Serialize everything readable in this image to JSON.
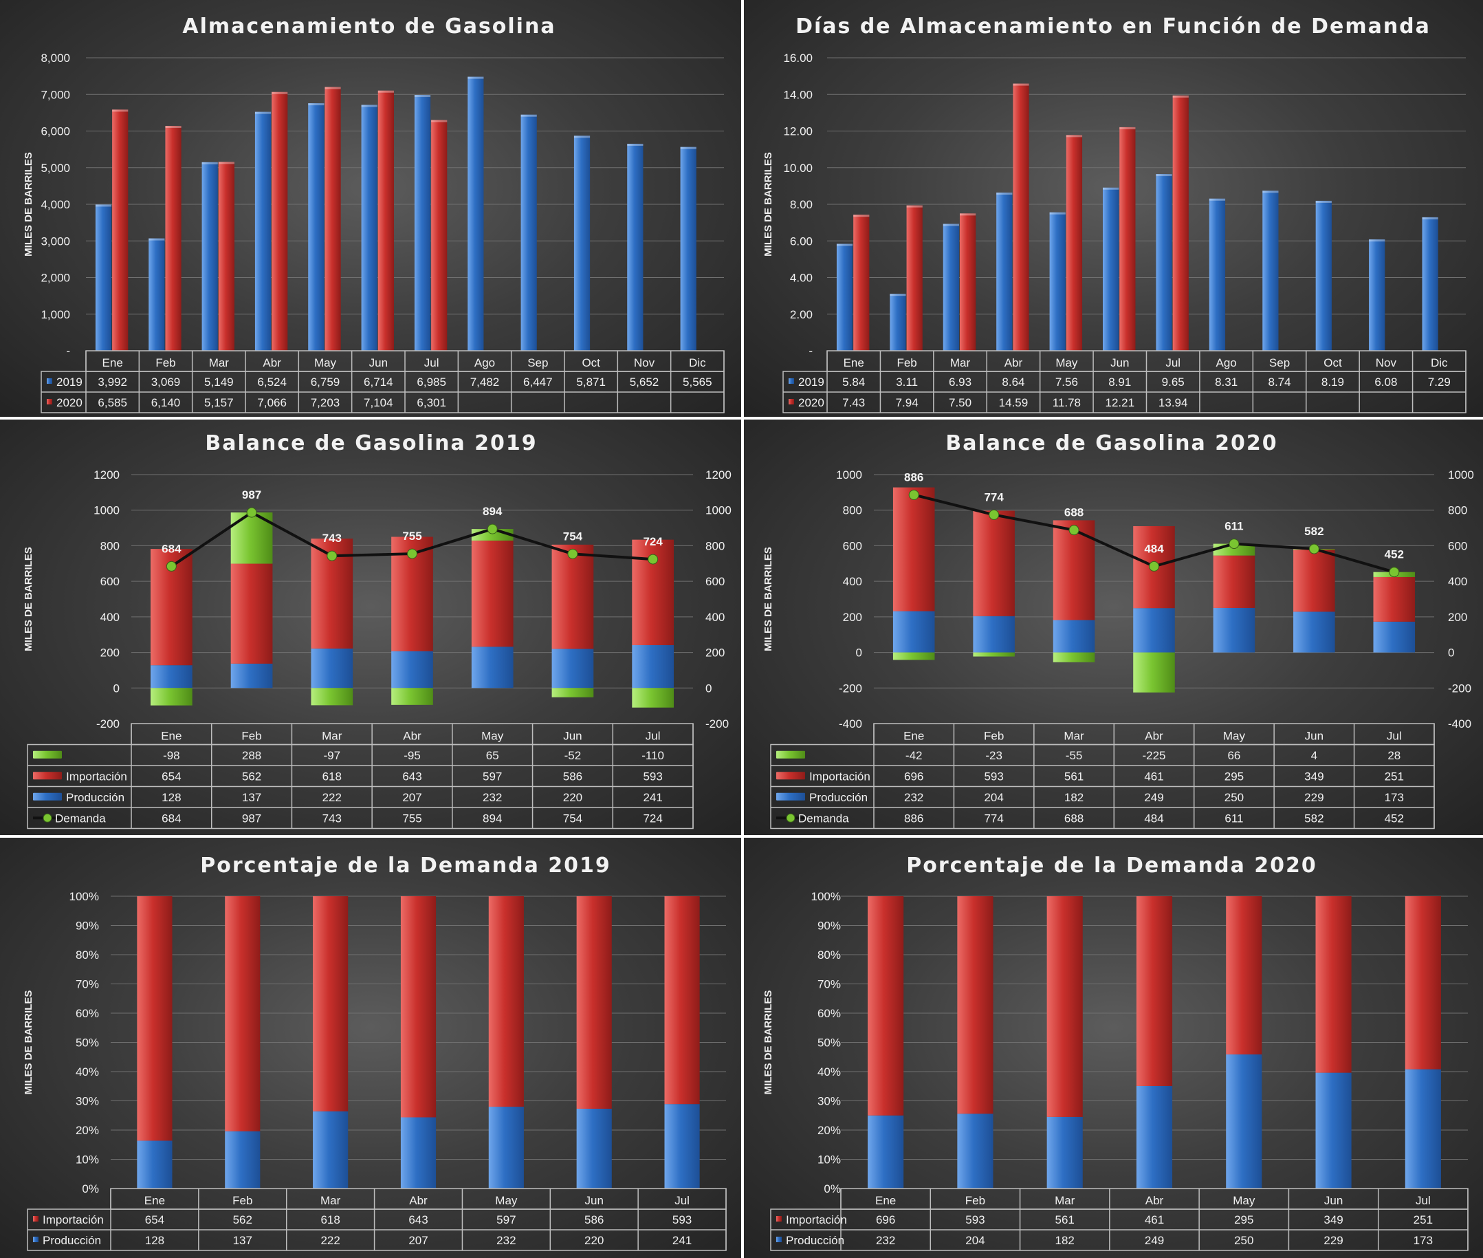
{
  "colors": {
    "blue": "#2e6fc4",
    "red": "#c9302c",
    "green": "#7ac531",
    "line": "#111111",
    "grid": "#707070"
  },
  "chart_data": [
    {
      "id": "c1",
      "type": "bar",
      "title": "Almacenamiento de Gasolina",
      "ylabel": "MILES DE BARRILES",
      "ylim": [
        0,
        8000
      ],
      "yticks": [
        "-",
        "1,000",
        "2,000",
        "3,000",
        "4,000",
        "5,000",
        "6,000",
        "7,000",
        "8,000"
      ],
      "categories": [
        "Ene",
        "Feb",
        "Mar",
        "Abr",
        "May",
        "Jun",
        "Jul",
        "Ago",
        "Sep",
        "Oct",
        "Nov",
        "Dic"
      ],
      "series": [
        {
          "name": "2019",
          "color": "#2e6fc4",
          "values": [
            3992,
            3069,
            5149,
            6524,
            6759,
            6714,
            6985,
            7482,
            6447,
            5871,
            5652,
            5565
          ],
          "labels": [
            "3,992",
            "3,069",
            "5,149",
            "6,524",
            "6,759",
            "6,714",
            "6,985",
            "7,482",
            "6,447",
            "5,871",
            "5,652",
            "5,565"
          ]
        },
        {
          "name": "2020",
          "color": "#c9302c",
          "values": [
            6585,
            6140,
            5157,
            7066,
            7203,
            7104,
            6301,
            null,
            null,
            null,
            null,
            null
          ],
          "labels": [
            "6,585",
            "6,140",
            "5,157",
            "7,066",
            "7,203",
            "7,104",
            "6,301",
            "",
            "",
            "",
            "",
            ""
          ]
        }
      ]
    },
    {
      "id": "c2",
      "type": "bar",
      "title": "Días de Almacenamiento en Función de Demanda",
      "ylabel": "MILES DE BARRILES",
      "ylim": [
        0,
        16
      ],
      "yticks": [
        "-",
        "2.00",
        "4.00",
        "6.00",
        "8.00",
        "10.00",
        "12.00",
        "14.00",
        "16.00"
      ],
      "categories": [
        "Ene",
        "Feb",
        "Mar",
        "Abr",
        "May",
        "Jun",
        "Jul",
        "Ago",
        "Sep",
        "Oct",
        "Nov",
        "Dic"
      ],
      "series": [
        {
          "name": "2019",
          "color": "#2e6fc4",
          "values": [
            5.84,
            3.11,
            6.93,
            8.64,
            7.56,
            8.91,
            9.65,
            8.31,
            8.74,
            8.19,
            6.08,
            7.29
          ],
          "labels": [
            "5.84",
            "3.11",
            "6.93",
            "8.64",
            "7.56",
            "8.91",
            "9.65",
            "8.31",
            "8.74",
            "8.19",
            "6.08",
            "7.29"
          ]
        },
        {
          "name": "2020",
          "color": "#c9302c",
          "values": [
            7.43,
            7.94,
            7.5,
            14.59,
            11.78,
            12.21,
            13.94,
            null,
            null,
            null,
            null,
            null
          ],
          "labels": [
            "7.43",
            "7.94",
            "7.50",
            "14.59",
            "11.78",
            "12.21",
            "13.94",
            "",
            "",
            "",
            "",
            ""
          ]
        }
      ]
    },
    {
      "id": "c3",
      "type": "bar",
      "title": "Balance de Gasolina 2019",
      "ylabel": "MILES DE BARRILES",
      "ylim": [
        -200,
        1200
      ],
      "yticks": [
        "-200",
        "0",
        "200",
        "400",
        "600",
        "800",
        "1000",
        "1200"
      ],
      "categories": [
        "Ene",
        "Feb",
        "Mar",
        "Abr",
        "May",
        "Jun",
        "Jul"
      ],
      "series": [
        {
          "name": "",
          "color": "#7ac531",
          "values": [
            -98,
            288,
            -97,
            -95,
            65,
            -52,
            -110
          ],
          "labels": [
            "-98",
            "288",
            "-97",
            "-95",
            "65",
            "-52",
            "-110"
          ]
        },
        {
          "name": "Importación",
          "color": "#c9302c",
          "values": [
            654,
            562,
            618,
            643,
            597,
            586,
            593
          ],
          "labels": [
            "654",
            "562",
            "618",
            "643",
            "597",
            "586",
            "593"
          ]
        },
        {
          "name": "Producción",
          "color": "#2e6fc4",
          "values": [
            128,
            137,
            222,
            207,
            232,
            220,
            241
          ],
          "labels": [
            "128",
            "137",
            "222",
            "207",
            "232",
            "220",
            "241"
          ]
        },
        {
          "name": "Demanda",
          "color": "#111111",
          "values": [
            684,
            987,
            743,
            755,
            894,
            754,
            724
          ],
          "labels": [
            "684",
            "987",
            "743",
            "755",
            "894",
            "754",
            "724"
          ]
        }
      ]
    },
    {
      "id": "c4",
      "type": "bar",
      "title": "Balance de Gasolina 2020",
      "ylabel": "MILES DE BARRILES",
      "ylim": [
        -400,
        1000
      ],
      "yticks": [
        "-400",
        "-200",
        "0",
        "200",
        "400",
        "600",
        "800",
        "1000"
      ],
      "categories": [
        "Ene",
        "Feb",
        "Mar",
        "Abr",
        "May",
        "Jun",
        "Jul"
      ],
      "series": [
        {
          "name": "",
          "color": "#7ac531",
          "values": [
            -42,
            -23,
            -55,
            -225,
            66,
            4,
            28
          ],
          "labels": [
            "-42",
            "-23",
            "-55",
            "-225",
            "66",
            "4",
            "28"
          ]
        },
        {
          "name": "Importación",
          "color": "#c9302c",
          "values": [
            696,
            593,
            561,
            461,
            295,
            349,
            251
          ],
          "labels": [
            "696",
            "593",
            "561",
            "461",
            "295",
            "349",
            "251"
          ]
        },
        {
          "name": "Producción",
          "color": "#2e6fc4",
          "values": [
            232,
            204,
            182,
            249,
            250,
            229,
            173
          ],
          "labels": [
            "232",
            "204",
            "182",
            "249",
            "250",
            "229",
            "173"
          ]
        },
        {
          "name": "Demanda",
          "color": "#111111",
          "values": [
            886,
            774,
            688,
            484,
            611,
            582,
            452
          ],
          "labels": [
            "886",
            "774",
            "688",
            "484",
            "611",
            "582",
            "452"
          ]
        }
      ]
    },
    {
      "id": "c5",
      "type": "bar",
      "title": "Porcentaje de la Demanda 2019",
      "ylabel": "MILES DE BARRILES",
      "ylim": [
        0,
        100
      ],
      "yticks": [
        "0%",
        "10%",
        "20%",
        "30%",
        "40%",
        "50%",
        "60%",
        "70%",
        "80%",
        "90%",
        "100%"
      ],
      "categories": [
        "Ene",
        "Feb",
        "Mar",
        "Abr",
        "May",
        "Jun",
        "Jul"
      ],
      "series": [
        {
          "name": "Importación",
          "color": "#c9302c",
          "values": [
            654,
            562,
            618,
            643,
            597,
            586,
            593
          ],
          "labels": [
            "654",
            "562",
            "618",
            "643",
            "597",
            "586",
            "593"
          ]
        },
        {
          "name": "Producción",
          "color": "#2e6fc4",
          "values": [
            128,
            137,
            222,
            207,
            232,
            220,
            241
          ],
          "labels": [
            "128",
            "137",
            "222",
            "207",
            "232",
            "220",
            "241"
          ]
        }
      ]
    },
    {
      "id": "c6",
      "type": "bar",
      "title": "Porcentaje de la Demanda 2020",
      "ylabel": "MILES DE BARRILES",
      "ylim": [
        0,
        100
      ],
      "yticks": [
        "0%",
        "10%",
        "20%",
        "30%",
        "40%",
        "50%",
        "60%",
        "70%",
        "80%",
        "90%",
        "100%"
      ],
      "categories": [
        "Ene",
        "Feb",
        "Mar",
        "Abr",
        "May",
        "Jun",
        "Jul"
      ],
      "series": [
        {
          "name": "Importación",
          "color": "#c9302c",
          "values": [
            696,
            593,
            561,
            461,
            295,
            349,
            251
          ],
          "labels": [
            "696",
            "593",
            "561",
            "461",
            "295",
            "349",
            "251"
          ]
        },
        {
          "name": "Producción",
          "color": "#2e6fc4",
          "values": [
            232,
            204,
            182,
            249,
            250,
            229,
            173
          ],
          "labels": [
            "232",
            "204",
            "182",
            "249",
            "250",
            "229",
            "173"
          ]
        }
      ]
    }
  ]
}
